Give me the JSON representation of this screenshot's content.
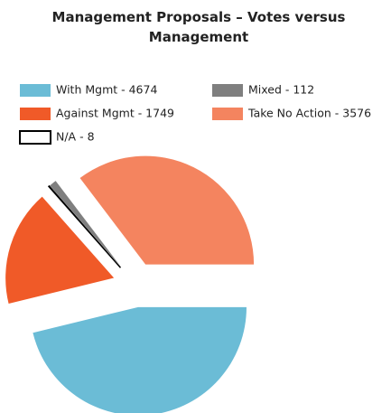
{
  "chart_data": {
    "type": "pie",
    "title": "Management Proposals – Votes versus Management",
    "categories": [
      "With Mgmt - 4674",
      "Against Mgmt - 1749",
      "N/A - 8",
      "Mixed - 112",
      "Take No Action - 3576"
    ],
    "values": [
      4674,
      1749,
      8,
      112,
      3576
    ],
    "colors": [
      "#6bbcd6",
      "#f05a28",
      "#ffffff",
      "#7f7f7f",
      "#f4845f"
    ],
    "exploded": true
  }
}
